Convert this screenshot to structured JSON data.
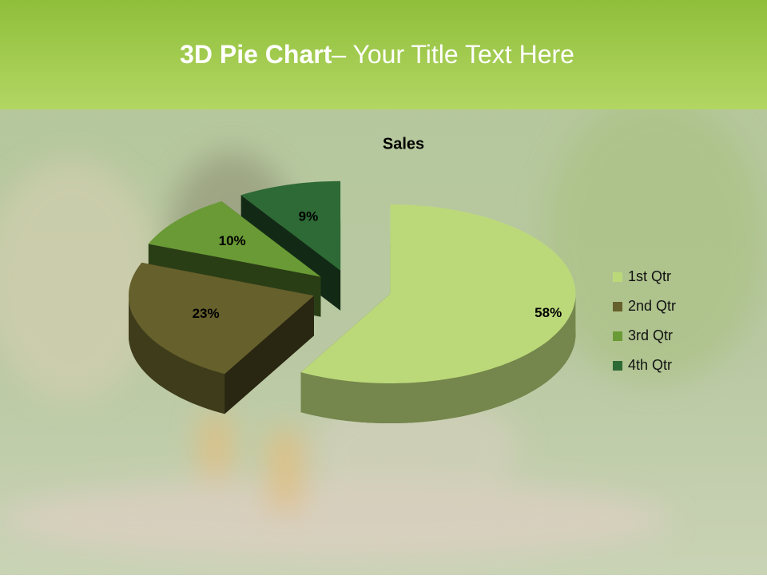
{
  "slide": {
    "title_bold": "3D Pie Chart",
    "title_rest": "– Your Title Text Here"
  },
  "chart_data": {
    "type": "pie",
    "title": "Sales",
    "categories": [
      "1st Qtr",
      "2nd Qtr",
      "3rd Qtr",
      "4th Qtr"
    ],
    "values": [
      58,
      23,
      10,
      9
    ],
    "value_labels": [
      "58%",
      "23%",
      "10%",
      "9%"
    ],
    "colors": [
      "#bcd97a",
      "#66602c",
      "#6a9a35",
      "#2e6a35"
    ],
    "legend": "right"
  }
}
